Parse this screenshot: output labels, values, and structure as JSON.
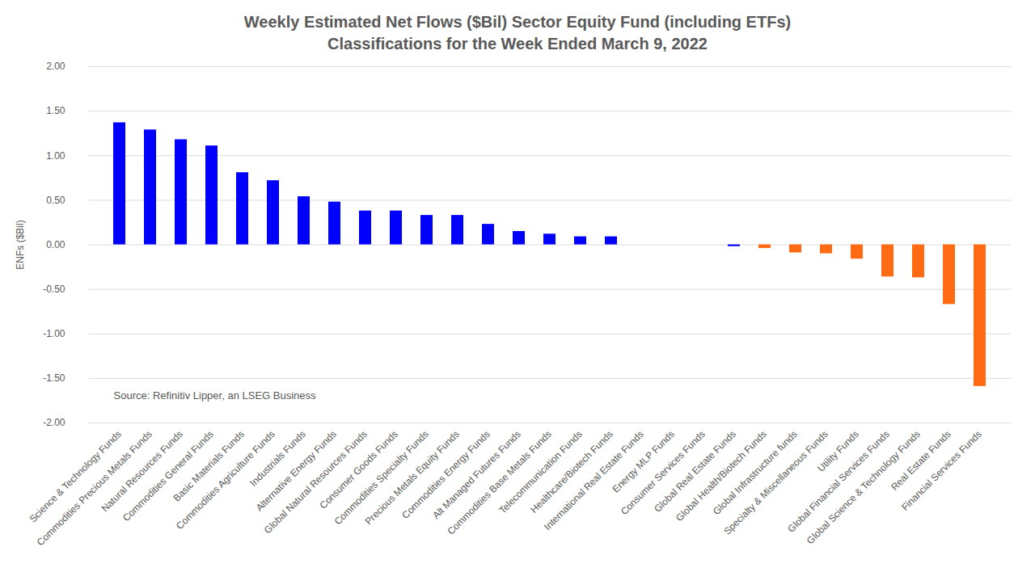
{
  "chart_data": {
    "type": "bar",
    "title": "Weekly Estimated Net Flows ($Bil) Sector Equity Fund (including ETFs) Classifications for the Week Ended March 9, 2022",
    "y_label": "ENFs ($Bil)",
    "annotation": "Source: Refinitiv Lipper, an LSEG Business",
    "categories": [
      "Science & Technology Funds",
      "Commodities Precious Metals Funds",
      "Natural Resources Funds",
      "Commodities General Funds",
      "Basic Materials Funds",
      "Commodities Agriculture Funds",
      "Industrials Funds",
      "Alternative Energy Funds",
      "Global Natural Resources Funds",
      "Consumer Goods Funds",
      "Commodities Specialty Funds",
      "Precious Metals Equity Funds",
      "Commodities Energy Funds",
      "Alt Managed Futures Funds",
      "Commodities Base Metals Funds",
      "Telecommunication Funds",
      "Healthcare/Biotech Funds",
      "International Real Estate Funds",
      "Energy MLP Funds",
      "Consumer Services Funds",
      "Global Real Estate Funds",
      "Global Health/Biotech Funds",
      "Global Infrastructure funds",
      "Specialty & Miscellaneous Funds",
      "Utility Funds",
      "Global Financial Services Funds",
      "Global Science & Technology Funds",
      "Real Estate Funds",
      "Financial Services Funds"
    ],
    "values": [
      1.37,
      1.29,
      1.18,
      1.11,
      0.81,
      0.72,
      0.54,
      0.48,
      0.38,
      0.38,
      0.33,
      0.33,
      0.23,
      0.15,
      0.12,
      0.09,
      0.09,
      0.0,
      0.0,
      0.0,
      -0.02,
      -0.04,
      -0.09,
      -0.1,
      -0.16,
      -0.36,
      -0.37,
      -0.67,
      -1.59
    ],
    "colors": [
      "#0000ff",
      "#0000ff",
      "#0000ff",
      "#0000ff",
      "#0000ff",
      "#0000ff",
      "#0000ff",
      "#0000ff",
      "#0000ff",
      "#0000ff",
      "#0000ff",
      "#0000ff",
      "#0000ff",
      "#0000ff",
      "#0000ff",
      "#0000ff",
      "#0000ff",
      "#0000ff",
      "#0000ff",
      "#0000ff",
      "#0000ff",
      "#ff6a13",
      "#ff6a13",
      "#ff6a13",
      "#ff6a13",
      "#ff6a13",
      "#ff6a13",
      "#ff6a13",
      "#ff6a13"
    ],
    "ylim": [
      -2.0,
      2.0
    ],
    "yticks": [
      {
        "value": -2.0,
        "label": "-2.00"
      },
      {
        "value": -1.5,
        "label": "-1.50"
      },
      {
        "value": -1.0,
        "label": "-1.00"
      },
      {
        "value": -0.5,
        "label": "-0.50"
      },
      {
        "value": 0.0,
        "label": "0.00"
      },
      {
        "value": 0.5,
        "label": "0.50"
      },
      {
        "value": 1.0,
        "label": "1.00"
      },
      {
        "value": 1.5,
        "label": "1.50"
      },
      {
        "value": 2.0,
        "label": "2.00"
      }
    ],
    "grid": true
  }
}
